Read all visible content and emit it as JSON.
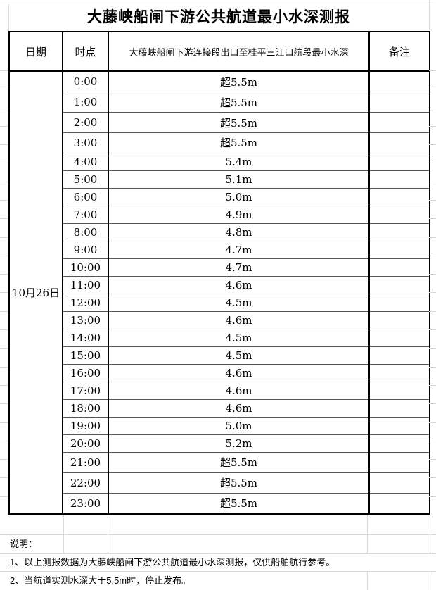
{
  "title": "大藤峡船闸下游公共航道最小水深测报",
  "table": {
    "headers": [
      "日期",
      "时点",
      "大藤峡船闸下游连接段出口至桂平三江口航段最小水深",
      "备注"
    ],
    "date": "10月26日",
    "rows": [
      {
        "time": "0:00",
        "depth": "超5.5m"
      },
      {
        "time": "1:00",
        "depth": "超5.5m"
      },
      {
        "time": "2:00",
        "depth": "超5.5m"
      },
      {
        "time": "3:00",
        "depth": "超5.5m"
      },
      {
        "time": "4:00",
        "depth": "5.4m"
      },
      {
        "time": "5:00",
        "depth": "5.1m"
      },
      {
        "time": "6:00",
        "depth": "5.0m"
      },
      {
        "time": "7:00",
        "depth": "4.9m"
      },
      {
        "time": "8:00",
        "depth": "4.8m"
      },
      {
        "time": "9:00",
        "depth": "4.7m"
      },
      {
        "time": "10:00",
        "depth": "4.7m"
      },
      {
        "time": "11:00",
        "depth": "4.6m"
      },
      {
        "time": "12:00",
        "depth": "4.5m"
      },
      {
        "time": "13:00",
        "depth": "4.6m"
      },
      {
        "time": "14:00",
        "depth": "4.5m"
      },
      {
        "time": "15:00",
        "depth": "4.5m"
      },
      {
        "time": "16:00",
        "depth": "4.6m"
      },
      {
        "time": "17:00",
        "depth": "4.6m"
      },
      {
        "time": "18:00",
        "depth": "4.6m"
      },
      {
        "time": "19:00",
        "depth": "5.0m"
      },
      {
        "time": "20:00",
        "depth": "5.2m"
      },
      {
        "time": "21:00",
        "depth": "超5.5m"
      },
      {
        "time": "22:00",
        "depth": "超5.5m"
      },
      {
        "time": "23:00",
        "depth": "超5.5m"
      }
    ]
  },
  "notes": {
    "label": "说明：",
    "items": [
      "1、以上测报数据为大藤峡船闸下游公共航道最小水深测报，仅供船舶航行参考。",
      "2、当航道实测水深大于5.5m时，停止发布。"
    ]
  }
}
